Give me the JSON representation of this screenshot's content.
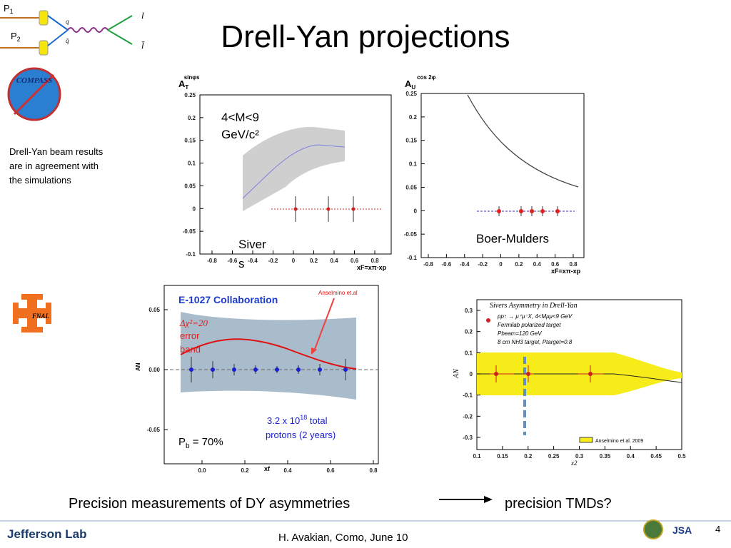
{
  "header": {
    "title": "Drell-Yan projections",
    "diagram": {
      "p1": "P",
      "p1_sub": "1",
      "p2": "P",
      "p2_sub": "2",
      "q": "q",
      "qbar": "q̄",
      "l": "l",
      "lbar": "l̄"
    }
  },
  "logos": {
    "compass": "COMPASS",
    "fnal": "FNAL",
    "jlab": "Jefferson Lab",
    "jsa": "JSA"
  },
  "note": [
    "Drell-Yan beam results",
    "are in agreement with",
    "the simulations"
  ],
  "plot_sivers": {
    "ylabel": "A",
    "ylabel_sub": "T",
    "ylabel_sup": "sinφs",
    "yticks": [
      "0.25",
      "0.2",
      "0.15",
      "0.1",
      "0.05",
      "0",
      "-0.05",
      "-0.1"
    ],
    "xticks": [
      "-0.8",
      "-0.6",
      "-0.4",
      "-0.2",
      "0",
      "0.2",
      "0.4",
      "0.6",
      "0.8"
    ],
    "xlabel": "xF=xπ-xp",
    "mass": [
      "4<M<9",
      "GeV/c²"
    ],
    "name": [
      "Siver",
      "s"
    ]
  },
  "plot_bm": {
    "ylabel": "A",
    "ylabel_sub": "U",
    "ylabel_sup": "cos 2φ",
    "yticks": [
      "0.25",
      "0.2",
      "0.15",
      "0.1",
      "0.05",
      "0",
      "-0.05",
      "-0.1"
    ],
    "xticks": [
      "-0.8",
      "-0.6",
      "-0.4",
      "-0.2",
      "0",
      "0.2",
      "0.4",
      "0.6",
      "0.8"
    ],
    "xlabel": "xF=xπ-xp",
    "name": "Boer-Mulders"
  },
  "plot_e1027": {
    "title": "E-1027 Collaboration",
    "ref": "Anselmino et.al",
    "band": [
      "Δχ²=20",
      "error",
      "band"
    ],
    "yticks": [
      "0.05",
      "0.00",
      "-0.05"
    ],
    "xticks": [
      "0.0",
      "0.2",
      "0.4",
      "0.6",
      "0.8"
    ],
    "ylabel": "AN",
    "xlabel": "xf",
    "protons": [
      "3.2 x 10",
      "18",
      " total",
      "protons (2 years)"
    ],
    "pol": [
      "P",
      "b",
      " = 70%"
    ]
  },
  "plot_fnal": {
    "title": "Sivers Asymmetry in Drell-Yan",
    "legend": [
      "pp↑ → μ⁺μ⁻X, 4<Mμμ<9 GeV",
      "Fermilab polarized target",
      "Pbeam=120 GeV",
      "8 cm NH3 target, Ptarget=0.8"
    ],
    "yticks": [
      "0.3",
      "0.2",
      "0.1",
      "0",
      "-0.1",
      "-0.2",
      "-0.3"
    ],
    "xticks": [
      "0.1",
      "0.15",
      "0.2",
      "0.25",
      "0.3",
      "0.35",
      "0.4",
      "0.45",
      "0.5"
    ],
    "ylabel": "AN",
    "xlabel": "x2",
    "band_legend": "Anselmino et al. 2009"
  },
  "footer": {
    "left": "Precision measurements of DY asymmetries",
    "right": "precision TMDs?",
    "author": "H. Avakian, Como,  June 10",
    "page": "4"
  }
}
